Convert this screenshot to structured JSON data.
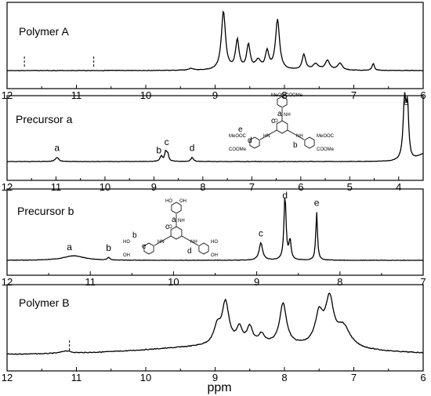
{
  "xlabel": "ppm",
  "chart_data": [
    {
      "type": "line",
      "title": "Polymer A",
      "xlim": [
        12,
        6
      ],
      "x_ticks": [
        12,
        11,
        10,
        9,
        8,
        7,
        6
      ],
      "tick_labels": [
        "12",
        "11",
        "10",
        "9",
        "8",
        "7",
        "6"
      ],
      "marker_lines": [
        11.75,
        10.75
      ],
      "peaks": [
        {
          "x": 8.88,
          "intensity": 1.0,
          "width": 0.035
        },
        {
          "x": 8.68,
          "intensity": 0.5,
          "width": 0.03
        },
        {
          "x": 8.52,
          "intensity": 0.42,
          "width": 0.03
        },
        {
          "x": 8.38,
          "intensity": 0.15,
          "width": 0.05
        },
        {
          "x": 8.25,
          "intensity": 0.3,
          "width": 0.03
        },
        {
          "x": 8.1,
          "intensity": 0.85,
          "width": 0.035
        },
        {
          "x": 7.72,
          "intensity": 0.26,
          "width": 0.03
        },
        {
          "x": 7.55,
          "intensity": 0.1,
          "width": 0.05
        },
        {
          "x": 7.38,
          "intensity": 0.16,
          "width": 0.04
        },
        {
          "x": 7.2,
          "intensity": 0.12,
          "width": 0.04
        },
        {
          "x": 6.72,
          "intensity": 0.12,
          "width": 0.02
        },
        {
          "x": 9.35,
          "intensity": 0.03,
          "width": 0.04
        }
      ]
    },
    {
      "type": "line",
      "title": "Precursor a",
      "xlim": [
        12,
        3.5
      ],
      "x_ticks": [
        12,
        11,
        10,
        9,
        8,
        7,
        6,
        5,
        4
      ],
      "tick_labels": [
        "12",
        "11",
        "10",
        "9",
        "8",
        "7",
        "6",
        "5",
        "4"
      ],
      "peaks": [
        {
          "x": 10.98,
          "intensity": 0.07,
          "width": 0.04
        },
        {
          "x": 8.85,
          "intensity": 0.09,
          "width": 0.03
        },
        {
          "x": 8.76,
          "intensity": 0.15,
          "width": 0.025
        },
        {
          "x": 8.72,
          "intensity": 0.12,
          "width": 0.025
        },
        {
          "x": 8.22,
          "intensity": 0.07,
          "width": 0.03
        },
        {
          "x": 3.88,
          "intensity": 1.0,
          "width": 0.035
        },
        {
          "x": 3.82,
          "intensity": 0.85,
          "width": 0.03
        }
      ],
      "peak_labels": [
        {
          "x": 10.98,
          "text": "a"
        },
        {
          "x": 8.9,
          "text": "b"
        },
        {
          "x": 8.74,
          "text": "c"
        },
        {
          "x": 8.22,
          "text": "d"
        },
        {
          "x": 3.85,
          "text": "e"
        }
      ],
      "structure_labels": {
        "groups": [
          "MeOOC",
          "COOMe",
          "MeOOC",
          "COOMe",
          "MeOOC",
          "COOMe"
        ],
        "letters": [
          "a",
          "c",
          "e",
          "d",
          "b"
        ],
        "nh": "NH",
        "hn": "HN",
        "o": "O"
      }
    },
    {
      "type": "line",
      "title": "Precursor b",
      "xlim": [
        12,
        7
      ],
      "x_ticks": [
        12,
        11,
        10,
        9,
        8,
        7
      ],
      "tick_labels": [
        "12",
        "11",
        "10",
        "9",
        "8",
        "7"
      ],
      "peaks": [
        {
          "x": 11.2,
          "intensity": 0.07,
          "width": 0.15
        },
        {
          "x": 10.78,
          "intensity": 0.04,
          "width": 0.015
        },
        {
          "x": 8.95,
          "intensity": 0.27,
          "width": 0.025
        },
        {
          "x": 8.66,
          "intensity": 1.0,
          "width": 0.015
        },
        {
          "x": 8.6,
          "intensity": 0.3,
          "width": 0.015
        },
        {
          "x": 8.28,
          "intensity": 0.75,
          "width": 0.012
        }
      ],
      "peak_labels": [
        {
          "x": 11.25,
          "text": "a"
        },
        {
          "x": 10.78,
          "text": "b"
        },
        {
          "x": 8.95,
          "text": "c"
        },
        {
          "x": 8.66,
          "text": "d"
        },
        {
          "x": 8.28,
          "text": "e"
        }
      ],
      "structure_labels": {
        "groups": [
          "HO",
          "OH",
          "HO",
          "OH",
          "HO",
          "OH"
        ],
        "letters": [
          "a",
          "c",
          "b",
          "e",
          "d"
        ],
        "nh": "NH",
        "hn": "HN",
        "o": "O"
      }
    },
    {
      "type": "line",
      "title": "Polymer B",
      "xlim": [
        12,
        6
      ],
      "x_ticks": [
        12,
        11,
        10,
        9,
        8,
        7,
        6
      ],
      "tick_labels": [
        "12",
        "11",
        "10",
        "9",
        "8",
        "7",
        "6"
      ],
      "marker_lines": [
        11.1
      ],
      "peaks": [
        {
          "x": 11.15,
          "intensity": 0.05,
          "width": 0.08
        },
        {
          "x": 8.97,
          "intensity": 0.33,
          "width": 0.06
        },
        {
          "x": 8.85,
          "intensity": 0.82,
          "width": 0.06
        },
        {
          "x": 8.65,
          "intensity": 0.3,
          "width": 0.05
        },
        {
          "x": 8.5,
          "intensity": 0.32,
          "width": 0.05
        },
        {
          "x": 8.33,
          "intensity": 0.18,
          "width": 0.05
        },
        {
          "x": 8.02,
          "intensity": 0.82,
          "width": 0.06
        },
        {
          "x": 7.5,
          "intensity": 0.6,
          "width": 0.07
        },
        {
          "x": 7.35,
          "intensity": 0.88,
          "width": 0.07
        },
        {
          "x": 7.15,
          "intensity": 0.4,
          "width": 0.12
        }
      ]
    }
  ]
}
